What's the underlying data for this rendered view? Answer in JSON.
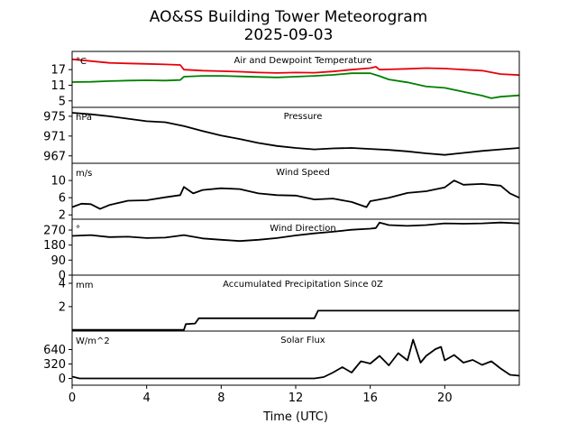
{
  "chart_data": {
    "type": "line",
    "title": "AO&SS Building Tower Meteorogram",
    "subtitle": "2025-09-03",
    "xlabel": "Time (UTC)",
    "xlim": [
      0,
      24
    ],
    "xticks": [
      0,
      4,
      8,
      12,
      16,
      20
    ],
    "panels": [
      {
        "title": "Air and Dewpoint Temperature",
        "unit": "°C",
        "ylim": [
          2.5,
          24
        ],
        "yticks": [
          5,
          11,
          17
        ],
        "series": [
          {
            "name": "Air Temperature",
            "color": "#e8000b",
            "points": [
              [
                0,
                21
              ],
              [
                1,
                20.3
              ],
              [
                2,
                19.6
              ],
              [
                3,
                19.4
              ],
              [
                4,
                19.2
              ],
              [
                5,
                19.0
              ],
              [
                5.8,
                18.8
              ],
              [
                6,
                17.0
              ],
              [
                7,
                16.6
              ],
              [
                8,
                16.4
              ],
              [
                9,
                16.2
              ],
              [
                10,
                15.9
              ],
              [
                11,
                15.7
              ],
              [
                12,
                15.9
              ],
              [
                13,
                15.8
              ],
              [
                14,
                16.3
              ],
              [
                15,
                17.0
              ],
              [
                16,
                17.6
              ],
              [
                16.3,
                18.1
              ],
              [
                16.5,
                17.0
              ],
              [
                17,
                17.1
              ],
              [
                18,
                17.3
              ],
              [
                19,
                17.6
              ],
              [
                20,
                17.4
              ],
              [
                21,
                17.0
              ],
              [
                22,
                16.6
              ],
              [
                23,
                15.3
              ],
              [
                24,
                14.9
              ]
            ]
          },
          {
            "name": "Dewpoint Temperature",
            "color": "#008000",
            "points": [
              [
                0,
                12.2
              ],
              [
                1,
                12.3
              ],
              [
                2,
                12.6
              ],
              [
                3,
                12.8
              ],
              [
                4,
                12.9
              ],
              [
                5,
                12.8
              ],
              [
                5.8,
                13.0
              ],
              [
                6,
                14.3
              ],
              [
                7,
                14.6
              ],
              [
                8,
                14.6
              ],
              [
                9,
                14.4
              ],
              [
                10,
                14.2
              ],
              [
                11,
                14.0
              ],
              [
                12,
                14.3
              ],
              [
                13,
                14.6
              ],
              [
                14,
                15.0
              ],
              [
                15,
                15.6
              ],
              [
                16,
                15.6
              ],
              [
                16.5,
                14.5
              ],
              [
                17,
                13.2
              ],
              [
                18,
                12.1
              ],
              [
                19,
                10.5
              ],
              [
                20,
                10.0
              ],
              [
                21,
                8.5
              ],
              [
                22,
                7.0
              ],
              [
                22.5,
                6.0
              ],
              [
                23,
                6.6
              ],
              [
                24,
                7.1
              ]
            ]
          }
        ]
      },
      {
        "title": "Pressure",
        "unit": "hPa",
        "ylim": [
          965.5,
          976.8
        ],
        "yticks": [
          967,
          971,
          975
        ],
        "series": [
          {
            "name": "Pressure",
            "color": "#000000",
            "points": [
              [
                0,
                975.7
              ],
              [
                1,
                975.4
              ],
              [
                2,
                975.0
              ],
              [
                3,
                974.5
              ],
              [
                4,
                974.0
              ],
              [
                5,
                973.8
              ],
              [
                6,
                973.0
              ],
              [
                7,
                972.0
              ],
              [
                8,
                971.1
              ],
              [
                9,
                970.4
              ],
              [
                10,
                969.6
              ],
              [
                11,
                969.0
              ],
              [
                12,
                968.6
              ],
              [
                13,
                968.3
              ],
              [
                14,
                968.5
              ],
              [
                15,
                968.6
              ],
              [
                16,
                968.4
              ],
              [
                17,
                968.2
              ],
              [
                18,
                967.9
              ],
              [
                19,
                967.5
              ],
              [
                20,
                967.2
              ],
              [
                21,
                967.6
              ],
              [
                22,
                968.0
              ],
              [
                23,
                968.3
              ],
              [
                24,
                968.6
              ]
            ]
          }
        ]
      },
      {
        "title": "Wind Speed",
        "unit": "m/s",
        "ylim": [
          1,
          14
        ],
        "yticks": [
          2,
          6,
          10
        ],
        "series": [
          {
            "name": "Wind Speed",
            "color": "#000000",
            "points": [
              [
                0,
                3.8
              ],
              [
                0.5,
                4.6
              ],
              [
                1,
                4.5
              ],
              [
                1.5,
                3.4
              ],
              [
                2,
                4.3
              ],
              [
                3,
                5.3
              ],
              [
                4,
                5.4
              ],
              [
                5,
                6.1
              ],
              [
                5.8,
                6.6
              ],
              [
                6,
                8.5
              ],
              [
                6.5,
                7.0
              ],
              [
                7,
                7.8
              ],
              [
                8,
                8.2
              ],
              [
                9,
                8.0
              ],
              [
                10,
                7.0
              ],
              [
                11,
                6.6
              ],
              [
                12,
                6.5
              ],
              [
                13,
                5.6
              ],
              [
                14,
                5.8
              ],
              [
                15,
                5.0
              ],
              [
                15.8,
                3.8
              ],
              [
                16,
                5.2
              ],
              [
                17,
                6.0
              ],
              [
                18,
                7.1
              ],
              [
                19,
                7.5
              ],
              [
                20,
                8.4
              ],
              [
                20.5,
                10.0
              ],
              [
                21,
                9.0
              ],
              [
                22,
                9.2
              ],
              [
                23,
                8.8
              ],
              [
                23.5,
                7.0
              ],
              [
                24,
                6.0
              ]
            ]
          }
        ]
      },
      {
        "title": "Wind Direction",
        "unit": "°",
        "ylim": [
          0,
          335
        ],
        "yticks": [
          0,
          90,
          180,
          270
        ],
        "series": [
          {
            "name": "Wind Direction",
            "color": "#000000",
            "points": [
              [
                0,
                235
              ],
              [
                1,
                240
              ],
              [
                2,
                228
              ],
              [
                3,
                230
              ],
              [
                4,
                222
              ],
              [
                5,
                225
              ],
              [
                6,
                240
              ],
              [
                7,
                220
              ],
              [
                8,
                212
              ],
              [
                9,
                204
              ],
              [
                10,
                212
              ],
              [
                11,
                222
              ],
              [
                12,
                238
              ],
              [
                13,
                250
              ],
              [
                14,
                260
              ],
              [
                15,
                272
              ],
              [
                16,
                278
              ],
              [
                16.3,
                282
              ],
              [
                16.5,
                315
              ],
              [
                17,
                300
              ],
              [
                18,
                295
              ],
              [
                19,
                300
              ],
              [
                20,
                310
              ],
              [
                21,
                308
              ],
              [
                22,
                310
              ],
              [
                23,
                315
              ],
              [
                24,
                310
              ]
            ]
          }
        ]
      },
      {
        "title": "Accumulated Precipitation Since 0Z",
        "unit": "mm",
        "ylim": [
          -0.1,
          4.7
        ],
        "yticks": [
          2,
          4
        ],
        "series": [
          {
            "name": "Precipitation",
            "color": "#000000",
            "points": [
              [
                0,
                0
              ],
              [
                6.0,
                0
              ],
              [
                6.1,
                0.5
              ],
              [
                6.6,
                0.55
              ],
              [
                6.8,
                1.0
              ],
              [
                13.0,
                1.0
              ],
              [
                13.2,
                1.65
              ],
              [
                24,
                1.65
              ]
            ]
          }
        ]
      },
      {
        "title": "Solar Flux",
        "unit": "W/m^2",
        "ylim": [
          -150,
          1050
        ],
        "yticks": [
          0,
          320,
          640
        ],
        "series": [
          {
            "name": "Solar Flux",
            "color": "#000000",
            "points": [
              [
                0,
                40
              ],
              [
                0.4,
                0
              ],
              [
                13,
                0
              ],
              [
                13.5,
                30
              ],
              [
                14,
                130
              ],
              [
                14.5,
                250
              ],
              [
                15,
                130
              ],
              [
                15.5,
                380
              ],
              [
                16,
                330
              ],
              [
                16.5,
                500
              ],
              [
                17,
                290
              ],
              [
                17.5,
                560
              ],
              [
                18,
                400
              ],
              [
                18.3,
                860
              ],
              [
                18.7,
                350
              ],
              [
                19,
                500
              ],
              [
                19.5,
                650
              ],
              [
                19.8,
                700
              ],
              [
                20,
                400
              ],
              [
                20.5,
                520
              ],
              [
                21,
                350
              ],
              [
                21.5,
                410
              ],
              [
                22,
                300
              ],
              [
                22.5,
                380
              ],
              [
                23,
                220
              ],
              [
                23.5,
                80
              ],
              [
                24,
                60
              ]
            ]
          }
        ]
      }
    ]
  }
}
